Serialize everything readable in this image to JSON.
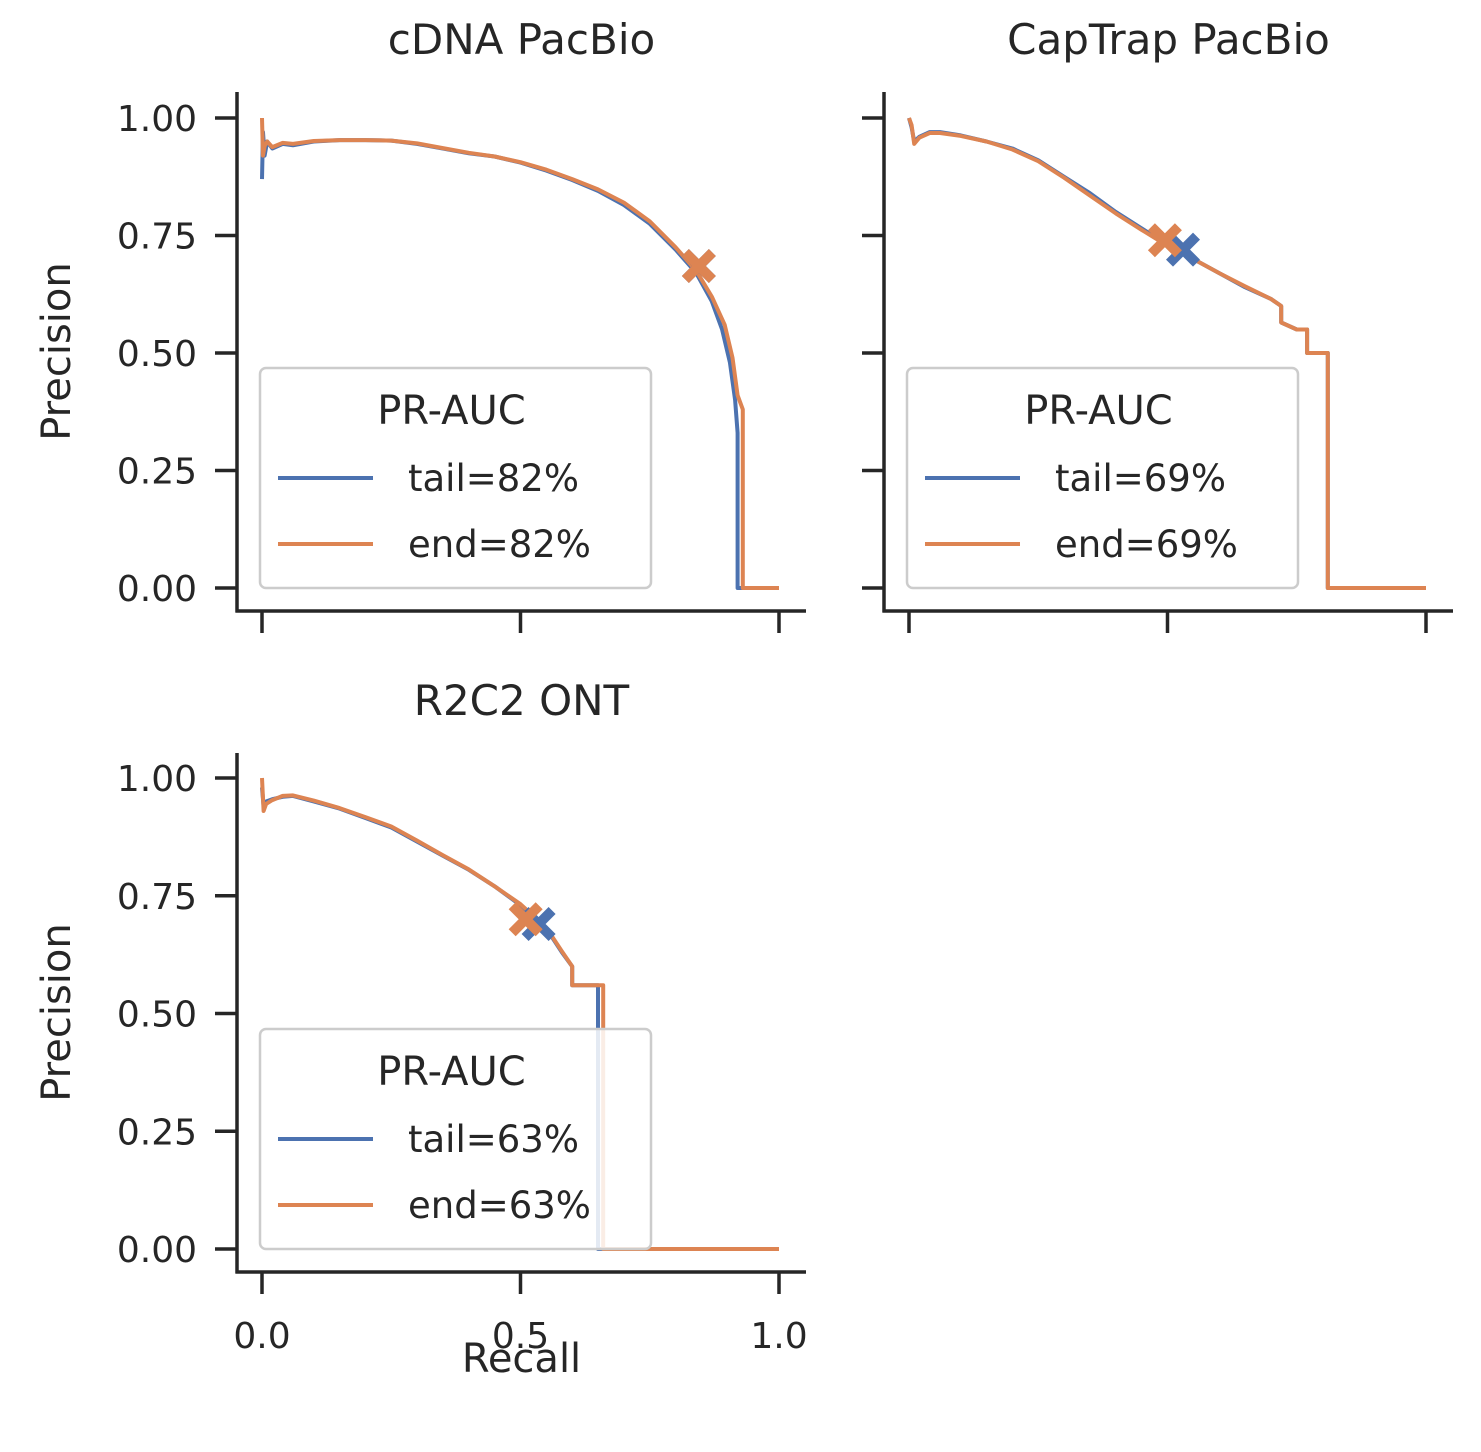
{
  "chart_data": [
    {
      "type": "line",
      "title": "cDNA PacBio",
      "xlabel": "",
      "ylabel": "Precision",
      "xlim": [
        -0.05,
        1.05
      ],
      "ylim": [
        -0.05,
        1.05
      ],
      "xticks": [
        0.0,
        0.5,
        1.0
      ],
      "xticklabels": [
        "",
        "",
        ""
      ],
      "yticks": [
        0.0,
        0.25,
        0.5,
        0.75,
        1.0
      ],
      "yticklabels": [
        "0.00",
        "0.25",
        "0.50",
        "0.75",
        "1.00"
      ],
      "grid": false,
      "legend": {
        "title": "PR-AUC",
        "placement": "lower-left"
      },
      "series": [
        {
          "name": "tail=82%",
          "color": "#4c72b0",
          "x": [
            0,
            0.002,
            0.005,
            0.01,
            0.02,
            0.04,
            0.06,
            0.1,
            0.15,
            0.2,
            0.25,
            0.3,
            0.35,
            0.4,
            0.45,
            0.5,
            0.55,
            0.6,
            0.65,
            0.7,
            0.75,
            0.8,
            0.84,
            0.87,
            0.89,
            0.905,
            0.915,
            0.92,
            0.92,
            1.0
          ],
          "y": [
            0.87,
            0.97,
            0.92,
            0.95,
            0.935,
            0.945,
            0.942,
            0.95,
            0.953,
            0.953,
            0.952,
            0.945,
            0.935,
            0.925,
            0.918,
            0.905,
            0.888,
            0.868,
            0.845,
            0.815,
            0.775,
            0.72,
            0.67,
            0.61,
            0.55,
            0.48,
            0.4,
            0.33,
            0.0,
            0.0
          ],
          "marker": {
            "x": 0.845,
            "y": 0.685,
            "symbol": "X"
          }
        },
        {
          "name": "end=82%",
          "color": "#dd8452",
          "x": [
            0,
            0.002,
            0.005,
            0.01,
            0.02,
            0.04,
            0.06,
            0.1,
            0.15,
            0.2,
            0.25,
            0.3,
            0.35,
            0.4,
            0.45,
            0.5,
            0.55,
            0.6,
            0.65,
            0.7,
            0.75,
            0.8,
            0.84,
            0.87,
            0.895,
            0.91,
            0.92,
            0.93,
            0.93,
            1.0
          ],
          "y": [
            1.0,
            0.92,
            0.94,
            0.95,
            0.938,
            0.947,
            0.945,
            0.951,
            0.953,
            0.953,
            0.952,
            0.946,
            0.936,
            0.926,
            0.918,
            0.906,
            0.89,
            0.87,
            0.848,
            0.82,
            0.78,
            0.725,
            0.675,
            0.62,
            0.56,
            0.49,
            0.41,
            0.38,
            0.0,
            0.0
          ],
          "marker": {
            "x": 0.845,
            "y": 0.685,
            "symbol": "X"
          }
        }
      ],
      "legend_labels": [
        "tail=82%",
        "end=82%"
      ]
    },
    {
      "type": "line",
      "title": "CapTrap PacBio",
      "xlabel": "",
      "ylabel": "",
      "xlim": [
        -0.05,
        1.05
      ],
      "ylim": [
        -0.05,
        1.05
      ],
      "xticks": [
        0.0,
        0.5,
        1.0
      ],
      "xticklabels": [
        "",
        "",
        ""
      ],
      "yticks": [
        0.0,
        0.25,
        0.5,
        0.75,
        1.0
      ],
      "yticklabels": [
        "",
        "",
        "",
        "",
        ""
      ],
      "grid": false,
      "legend": {
        "title": "PR-AUC",
        "placement": "lower-left"
      },
      "series": [
        {
          "name": "tail=69%",
          "color": "#4c72b0",
          "x": [
            0,
            0.005,
            0.01,
            0.02,
            0.04,
            0.06,
            0.1,
            0.15,
            0.2,
            0.25,
            0.3,
            0.35,
            0.4,
            0.45,
            0.5,
            0.55,
            0.6,
            0.65,
            0.7,
            0.72,
            0.72,
            0.75,
            0.77,
            0.77,
            0.81,
            0.81,
            0.81,
            1.0
          ],
          "y": [
            1.0,
            0.98,
            0.95,
            0.96,
            0.97,
            0.97,
            0.963,
            0.95,
            0.935,
            0.91,
            0.875,
            0.84,
            0.8,
            0.765,
            0.73,
            0.7,
            0.67,
            0.64,
            0.615,
            0.6,
            0.565,
            0.55,
            0.55,
            0.5,
            0.5,
            0.5,
            0.0,
            0.0
          ],
          "marker": {
            "x": 0.53,
            "y": 0.72,
            "symbol": "X"
          }
        },
        {
          "name": "end=69%",
          "color": "#dd8452",
          "x": [
            0,
            0.005,
            0.01,
            0.02,
            0.04,
            0.06,
            0.1,
            0.15,
            0.2,
            0.25,
            0.3,
            0.35,
            0.4,
            0.45,
            0.5,
            0.55,
            0.6,
            0.65,
            0.7,
            0.72,
            0.72,
            0.75,
            0.77,
            0.77,
            0.81,
            0.81,
            0.81,
            1.0
          ],
          "y": [
            1.0,
            0.985,
            0.945,
            0.958,
            0.968,
            0.968,
            0.962,
            0.95,
            0.933,
            0.908,
            0.873,
            0.835,
            0.797,
            0.762,
            0.728,
            0.7,
            0.67,
            0.642,
            0.615,
            0.6,
            0.565,
            0.55,
            0.55,
            0.5,
            0.5,
            0.5,
            0.0,
            0.0
          ],
          "marker": {
            "x": 0.495,
            "y": 0.74,
            "symbol": "X"
          }
        }
      ],
      "legend_labels": [
        "tail=69%",
        "end=69%"
      ]
    },
    {
      "type": "line",
      "title": "R2C2 ONT",
      "xlabel": "Recall",
      "ylabel": "Precision",
      "xlim": [
        -0.05,
        1.05
      ],
      "ylim": [
        -0.05,
        1.05
      ],
      "xticks": [
        0.0,
        0.5,
        1.0
      ],
      "xticklabels": [
        "0.0",
        "0.5",
        "1.0"
      ],
      "yticks": [
        0.0,
        0.25,
        0.5,
        0.75,
        1.0
      ],
      "yticklabels": [
        "0.00",
        "0.25",
        "0.50",
        "0.75",
        "1.00"
      ],
      "grid": false,
      "legend": {
        "title": "PR-AUC",
        "placement": "lower-left"
      },
      "series": [
        {
          "name": "tail=63%",
          "color": "#4c72b0",
          "x": [
            0,
            0.003,
            0.008,
            0.02,
            0.04,
            0.06,
            0.1,
            0.15,
            0.2,
            0.25,
            0.3,
            0.35,
            0.4,
            0.45,
            0.5,
            0.55,
            0.58,
            0.6,
            0.6,
            0.65,
            0.65,
            0.65,
            1.0
          ],
          "y": [
            0.98,
            0.94,
            0.95,
            0.955,
            0.96,
            0.962,
            0.95,
            0.935,
            0.915,
            0.895,
            0.865,
            0.835,
            0.805,
            0.77,
            0.73,
            0.68,
            0.63,
            0.6,
            0.56,
            0.56,
            0.56,
            0.0,
            0.0
          ],
          "marker": {
            "x": 0.535,
            "y": 0.69,
            "symbol": "X"
          }
        },
        {
          "name": "end=63%",
          "color": "#dd8452",
          "x": [
            0,
            0.003,
            0.008,
            0.02,
            0.04,
            0.06,
            0.1,
            0.15,
            0.2,
            0.25,
            0.3,
            0.35,
            0.4,
            0.45,
            0.5,
            0.55,
            0.58,
            0.6,
            0.6,
            0.66,
            0.66,
            0.66,
            1.0
          ],
          "y": [
            1.0,
            0.93,
            0.945,
            0.953,
            0.962,
            0.963,
            0.952,
            0.936,
            0.917,
            0.897,
            0.867,
            0.836,
            0.806,
            0.77,
            0.732,
            0.682,
            0.632,
            0.6,
            0.56,
            0.56,
            0.56,
            0.0,
            0.0
          ],
          "marker": {
            "x": 0.51,
            "y": 0.7,
            "symbol": "X"
          }
        }
      ],
      "legend_labels": [
        "tail=63%",
        "end=63%"
      ]
    }
  ],
  "colors": {
    "axis": "#262626",
    "tail": "#4c72b0",
    "end": "#dd8452",
    "legend_border": "#cccccc"
  }
}
